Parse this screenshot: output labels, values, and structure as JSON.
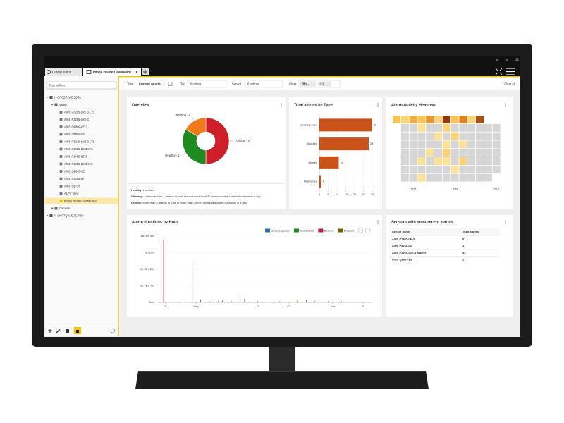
{
  "tabs": [
    "Configuration",
    "Image Health Dashboard"
  ],
  "sidebar": {
    "filter_placeholder": "Type to filter",
    "tree": [
      {
        "label": "H-CR8QTJWDSQTA",
        "children": [
          {
            "label": "Views",
            "children": [
              {
                "label": "AXIS P3265-LVE-3 LTS"
              },
              {
                "label": "AXIS P3265-LVE-3"
              },
              {
                "label": "AXIS Q1809-LE-3"
              },
              {
                "label": "AXIS Q1809-LE"
              },
              {
                "label": "AXIS P3245-LVE-3 LTS"
              },
              {
                "label": "AXIS P1465-LE-3 LTS"
              },
              {
                "label": "AXIS P1465-LE-3"
              },
              {
                "label": "AXIS P1455-LE-3 LTS"
              },
              {
                "label": "AXIS Q1805-LE"
              },
              {
                "label": "AXIS P3268-LV"
              },
              {
                "label": "AXIS Q1728"
              },
              {
                "label": "ALPV View"
              },
              {
                "label": "Image Health Dashboard",
                "selected": true
              }
            ]
          },
          {
            "label": "Cameras",
            "collapsed": true
          }
        ]
      },
      {
        "label": "H-OKPTQHMZ7CTOD",
        "collapsed": true
      }
    ]
  },
  "filters": {
    "time_label": "Time",
    "time_value": "Current quarter",
    "tag_label": "Tag",
    "tag_value": "0 option",
    "sensor_label": "Sensor",
    "sensor_value": "0 options",
    "class_label": "Class",
    "class_value": "Blo...",
    "class_more": "+ 3 ...",
    "clear": "Clear All"
  },
  "overview": {
    "title": "Overview",
    "chart_data": {
      "type": "pie",
      "categories": [
        "Critical",
        "Healthy",
        "Warning"
      ],
      "values": [
        3,
        2,
        1
      ],
      "value_labels": [
        "Critical - 3",
        "Healthy - 2",
        "Warning - 1"
      ],
      "colors": [
        "#cc1f2a",
        "#1f8a1f",
        "#f07a1a"
      ]
    },
    "legend": [
      {
        "term": "Healthy:",
        "text": "No alarm"
      },
      {
        "term": "Warning:",
        "text": "Not more than 3 alarms in total and not more than 30 min cumulated alarm durations in a day"
      },
      {
        "term": "Critical:",
        "text": "More than 3 alarms in total or more than 30 min cumulated alarm durations in a day"
      }
    ]
  },
  "alarms_by_type": {
    "title": "Total alarms by Type",
    "chart_data": {
      "type": "bar",
      "orientation": "horizontal",
      "categories": [
        "Underexposed",
        "Blocked",
        "Blurred",
        "Redirected"
      ],
      "values": [
        30,
        28,
        11,
        1
      ],
      "color": "#c9531a",
      "xlim": [
        0,
        31
      ],
      "xticks": [
        0,
        5,
        10,
        15,
        20,
        25,
        30
      ],
      "grid": true
    }
  },
  "heatmap": {
    "title": "Alarm Activity Heatmap",
    "chart_data": {
      "type": "heatmap",
      "columns": [
        null,
        null,
        "April",
        null,
        null,
        null,
        null,
        "May",
        null,
        null,
        null,
        null,
        "June"
      ],
      "values": [
        [
          3,
          2,
          4,
          3,
          5,
          2,
          9,
          3,
          6,
          2,
          8,
          null,
          null
        ],
        [
          null,
          0,
          0,
          1,
          0,
          0,
          2,
          0,
          0,
          0,
          0,
          0,
          0
        ],
        [
          null,
          0,
          0,
          0,
          0,
          1,
          0,
          2,
          0,
          0,
          0,
          0,
          0
        ],
        [
          null,
          0,
          0,
          0,
          0,
          0,
          1,
          0,
          1,
          0,
          0,
          0,
          0
        ],
        [
          null,
          0,
          0,
          0,
          1,
          0,
          2,
          0,
          0,
          0,
          0,
          0,
          0
        ],
        [
          null,
          0,
          0,
          1,
          0,
          1,
          1,
          0,
          2,
          0,
          0,
          0,
          0
        ],
        [
          null,
          0,
          0,
          0,
          0,
          0,
          0,
          1,
          0,
          0,
          0,
          0,
          0
        ],
        [
          null,
          0,
          0,
          1,
          0,
          0,
          0,
          0,
          0,
          0,
          0,
          0,
          null
        ]
      ]
    }
  },
  "durations": {
    "title": "Alarm durations by Hour",
    "chart_data": {
      "type": "line",
      "xlim": [
        21,
        70
      ],
      "ylim": [
        0,
        40000
      ],
      "xticks": [
        {
          "value": 23,
          "label": "24"
        },
        {
          "value": 30,
          "label": "May"
        },
        {
          "value": 44,
          "label": "15"
        },
        {
          "value": 51,
          "label": "22"
        },
        {
          "value": 61,
          "label": "Jun"
        },
        {
          "value": 68,
          "label": "8"
        }
      ],
      "yticks": [
        {
          "value": 0,
          "label": "0ms"
        },
        {
          "value": 10000,
          "label": "2h 46m 40s"
        },
        {
          "value": 20000,
          "label": "5h 33m 20s"
        },
        {
          "value": 30000,
          "label": "8h 20m"
        },
        {
          "value": 40000,
          "label": "11h 6m 40s"
        }
      ],
      "grid": true,
      "series": [
        {
          "name": "Underexposed",
          "color": "#2f6fb0",
          "x": [
            27,
            35,
            45,
            58
          ],
          "values": [
            400,
            600,
            300,
            500
          ]
        },
        {
          "name": "Redirected",
          "color": "#1f8a1f",
          "x": [
            42
          ],
          "values": [
            300
          ]
        },
        {
          "name": "Blurred",
          "color": "#c2185b",
          "x": [
            22.6,
            29.1,
            40,
            55
          ],
          "values": [
            38000,
            23500,
            2500,
            1500
          ]
        },
        {
          "name": "Blocked",
          "color": "#7a5a00",
          "x": [
            31,
            33,
            36,
            38,
            41,
            44,
            47,
            49,
            53,
            57,
            60,
            63,
            66
          ],
          "values": [
            1800,
            900,
            1200,
            600,
            2200,
            800,
            1000,
            700,
            1400,
            900,
            600,
            800,
            500
          ]
        }
      ]
    }
  },
  "sensors": {
    "title": "Sensors with most recent alarms",
    "table": {
      "columns": [
        "Sensor name",
        "Total alarms"
      ],
      "rows": [
        [
          "AXIS P1465-LE-3",
          8
        ],
        [
          "AXIS P3268-LV",
          1
        ],
        [
          "AXIS P3265-LVE-3 Master",
          34
        ],
        [
          "AXIS Q1805-LE",
          27
        ]
      ]
    }
  }
}
